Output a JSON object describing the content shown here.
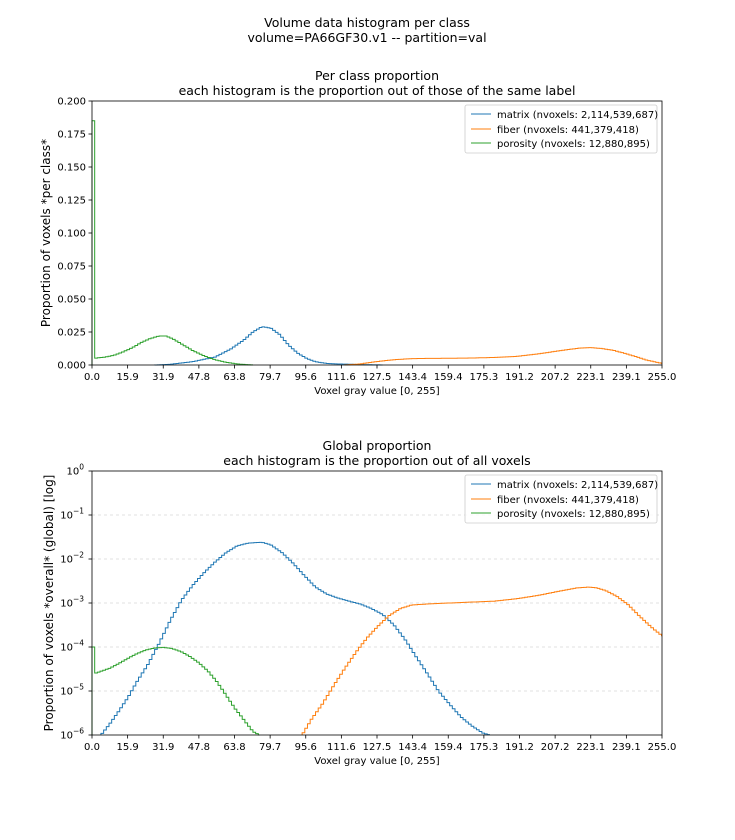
{
  "figure": {
    "suptitle_line1": "Volume data histogram per class",
    "suptitle_line2": "volume=PA66GF30.v1  --  partition=val"
  },
  "colors": {
    "matrix": "#1f77b4",
    "fiber": "#ff7f0e",
    "porosity": "#2ca02c",
    "grid": "#d9d9d9"
  },
  "chart_data": [
    {
      "type": "line",
      "drawstyle": "steps",
      "title": "Per class proportion",
      "subtitle": "each histogram is the proportion out of those of the same label",
      "xlabel": "Voxel gray value [0, 255]",
      "ylabel": "Proportion of voxels *per class*",
      "xlim": [
        0,
        255
      ],
      "ylim": [
        0,
        0.2
      ],
      "yscale": "linear",
      "grid": false,
      "legend": "top-right",
      "xticks": [
        "0.0",
        "15.9",
        "31.9",
        "47.8",
        "63.8",
        "79.7",
        "95.6",
        "111.6",
        "127.5",
        "143.4",
        "159.4",
        "175.3",
        "191.2",
        "207.2",
        "223.1",
        "239.1",
        "255.0"
      ],
      "yticks": [
        "0.000",
        "0.025",
        "0.050",
        "0.075",
        "0.100",
        "0.125",
        "0.150",
        "0.175",
        "0.200"
      ],
      "series": [
        {
          "name": "matrix (nvoxels: 2,114,539,687)",
          "color": "#1f77b4",
          "x": [
            28,
            35,
            45,
            55,
            62,
            68,
            72,
            76,
            80,
            84,
            88,
            92,
            96,
            100,
            105,
            110,
            115,
            120,
            130
          ],
          "y": [
            0.0,
            0.0005,
            0.0025,
            0.006,
            0.012,
            0.019,
            0.025,
            0.029,
            0.028,
            0.023,
            0.015,
            0.009,
            0.005,
            0.0025,
            0.0012,
            0.0008,
            0.0006,
            0.0003,
            0.0
          ]
        },
        {
          "name": "fiber (nvoxels: 441,379,418)",
          "color": "#ff7f0e",
          "x": [
            113,
            120,
            127,
            135,
            143,
            150,
            160,
            170,
            180,
            190,
            200,
            210,
            218,
            223,
            228,
            233,
            238,
            243,
            248,
            255
          ],
          "y": [
            0.0,
            0.0008,
            0.0025,
            0.004,
            0.0048,
            0.005,
            0.0051,
            0.0053,
            0.0057,
            0.0065,
            0.0085,
            0.011,
            0.0128,
            0.0132,
            0.0125,
            0.0112,
            0.009,
            0.0065,
            0.0038,
            0.0012
          ]
        },
        {
          "name": "porosity (nvoxels: 12,880,895)",
          "color": "#2ca02c",
          "x": [
            0,
            0.6,
            1.2,
            3,
            6,
            10,
            14,
            18,
            22,
            26,
            30,
            33,
            36,
            40,
            45,
            50,
            55,
            60,
            65,
            70,
            72
          ],
          "y": [
            0.185,
            0.185,
            0.005,
            0.0055,
            0.006,
            0.0075,
            0.01,
            0.013,
            0.017,
            0.02,
            0.022,
            0.022,
            0.02,
            0.016,
            0.011,
            0.007,
            0.004,
            0.002,
            0.0008,
            0.0002,
            0.0
          ]
        }
      ]
    },
    {
      "type": "line",
      "drawstyle": "steps",
      "title": "Global proportion",
      "subtitle": "each histogram is the proportion out of all voxels",
      "xlabel": "Voxel gray value [0, 255]",
      "ylabel": "Proportion of voxels *overall* (global) [log]",
      "xlim": [
        0,
        255
      ],
      "ylim": [
        1e-06,
        1
      ],
      "yscale": "log",
      "grid": true,
      "legend": "top-right",
      "xticks": [
        "0.0",
        "15.9",
        "31.9",
        "47.8",
        "63.8",
        "79.7",
        "95.6",
        "111.6",
        "127.5",
        "143.4",
        "159.4",
        "175.3",
        "191.2",
        "207.2",
        "223.1",
        "239.1",
        "255.0"
      ],
      "yticks": [
        {
          "base": "10",
          "exp": "−6"
        },
        {
          "base": "10",
          "exp": "−5"
        },
        {
          "base": "10",
          "exp": "−4"
        },
        {
          "base": "10",
          "exp": "−3"
        },
        {
          "base": "10",
          "exp": "−2"
        },
        {
          "base": "10",
          "exp": "−1"
        },
        {
          "base": "10",
          "exp": "0"
        }
      ],
      "series": [
        {
          "name": "matrix (nvoxels: 2,114,539,687)",
          "color": "#1f77b4",
          "x": [
            4,
            8,
            12,
            16,
            20,
            25,
            30,
            35,
            40,
            45,
            50,
            55,
            60,
            65,
            70,
            76,
            80,
            85,
            90,
            95,
            100,
            105,
            110,
            115,
            120,
            125,
            130,
            135,
            140,
            145,
            150,
            155,
            160,
            165,
            170,
            175,
            178
          ],
          "y": [
            1e-06,
            1.8e-06,
            3.5e-06,
            7e-06,
            1.6e-05,
            4e-05,
            0.00012,
            0.0004,
            0.00115,
            0.0025,
            0.0048,
            0.0085,
            0.014,
            0.02,
            0.023,
            0.024,
            0.021,
            0.014,
            0.008,
            0.0042,
            0.0023,
            0.0016,
            0.0013,
            0.0011,
            0.00095,
            0.00075,
            0.00055,
            0.00032,
            0.00015,
            6e-05,
            2.5e-05,
            1e-05,
            5e-06,
            2.6e-06,
            1.6e-06,
            1.1e-06,
            1e-06
          ]
        },
        {
          "name": "fiber (nvoxels: 441,379,418)",
          "color": "#ff7f0e",
          "x": [
            94,
            98,
            103,
            108,
            113,
            118,
            123,
            128,
            133,
            138,
            143,
            150,
            160,
            170,
            180,
            190,
            200,
            210,
            217,
            222,
            226,
            230,
            235,
            240,
            245,
            250,
            255
          ],
          "y": [
            1e-06,
            2.2e-06,
            5e-06,
            1.3e-05,
            3.2e-05,
            7.5e-05,
            0.00016,
            0.0003,
            0.00052,
            0.00075,
            0.0009,
            0.00095,
            0.001,
            0.00105,
            0.0011,
            0.00125,
            0.0015,
            0.0019,
            0.0022,
            0.0023,
            0.0022,
            0.0019,
            0.0014,
            0.0009,
            0.0005,
            0.00029,
            0.00018
          ]
        },
        {
          "name": "porosity (nvoxels: 12,880,895)",
          "color": "#2ca02c",
          "x": [
            0,
            0.6,
            1.2,
            4,
            8,
            12,
            16,
            20,
            24,
            28,
            32,
            36,
            40,
            44,
            48,
            52,
            56,
            60,
            64,
            68,
            72,
            75
          ],
          "y": [
            0.0001,
            0.0001,
            2.5e-05,
            2.8e-05,
            3.3e-05,
            4.2e-05,
            5.5e-05,
            7e-05,
            8.5e-05,
            9.5e-05,
            9.8e-05,
            9.2e-05,
            7.8e-05,
            6e-05,
            4.3e-05,
            2.8e-05,
            1.6e-05,
            8e-06,
            4e-06,
            2.2e-06,
            1.2e-06,
            1e-06
          ]
        }
      ]
    }
  ]
}
